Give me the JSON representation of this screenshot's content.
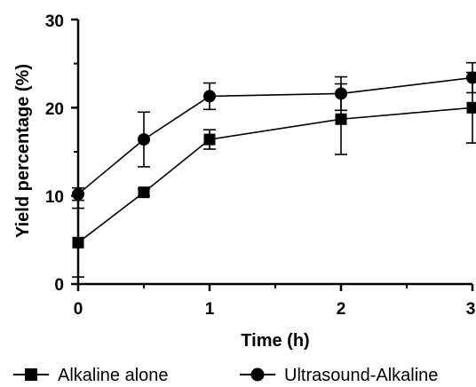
{
  "chart_data": {
    "type": "line",
    "xlabel": "Time (h)",
    "ylabel": "Yield percentage (%)",
    "xlim": [
      0,
      3
    ],
    "ylim": [
      0,
      30
    ],
    "x_ticks": [
      "0",
      "1",
      "2",
      "3"
    ],
    "y_ticks": [
      "0",
      "10",
      "20",
      "30"
    ],
    "grid": false,
    "legend_position": "bottom",
    "series": [
      {
        "name": "Alkaline alone",
        "marker": "square",
        "color": "#000000",
        "x": [
          0,
          0.5,
          1,
          2,
          3
        ],
        "y": [
          4.7,
          10.4,
          16.4,
          18.7,
          20.0
        ],
        "error": [
          3.9,
          0.4,
          1.1,
          4.0,
          4.0
        ]
      },
      {
        "name": "Ultrasound-Alkaline",
        "marker": "circle",
        "color": "#000000",
        "x": [
          0,
          0.5,
          1,
          2,
          3
        ],
        "y": [
          10.2,
          16.4,
          21.3,
          21.6,
          23.4
        ],
        "error": [
          0.7,
          3.1,
          1.5,
          1.9,
          1.7
        ]
      }
    ]
  }
}
